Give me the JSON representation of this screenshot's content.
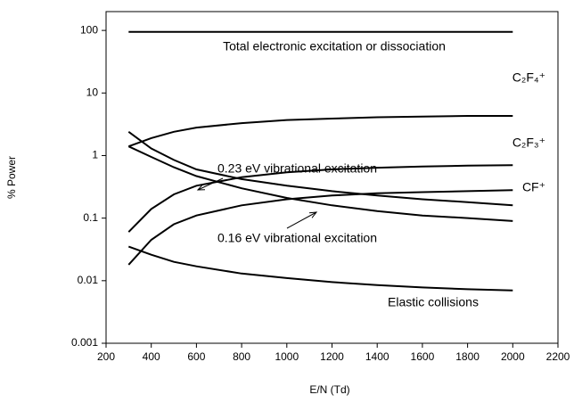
{
  "chart_data": {
    "type": "line",
    "x_label": "E/N (Td)",
    "y_label": "% Power",
    "log_y": true,
    "xlim": [
      200,
      2200
    ],
    "xticks": [
      200,
      400,
      600,
      800,
      1000,
      1200,
      1400,
      1600,
      1800,
      2000,
      2200
    ],
    "ylim": [
      0.001,
      200
    ],
    "yticks": [
      0.001,
      0.01,
      0.1,
      1,
      10,
      100
    ],
    "x": [
      300,
      400,
      500,
      600,
      800,
      1000,
      1200,
      1400,
      1600,
      1800,
      2000
    ],
    "series": [
      {
        "name": "Total electronic excitation or dissociation",
        "color": "#000000",
        "values": [
          95,
          95,
          95,
          95,
          95,
          95,
          95,
          95,
          95,
          95,
          95
        ]
      },
      {
        "name": "C₂F₄⁺",
        "color": "#000000",
        "values": [
          1.4,
          1.9,
          2.4,
          2.8,
          3.3,
          3.7,
          3.9,
          4.1,
          4.2,
          4.3,
          4.3
        ]
      },
      {
        "name": "C₂F₃⁺",
        "color": "#000000",
        "values": [
          0.06,
          0.14,
          0.24,
          0.33,
          0.45,
          0.54,
          0.6,
          0.64,
          0.67,
          0.69,
          0.7
        ]
      },
      {
        "name": "CF⁺",
        "color": "#000000",
        "values": [
          0.018,
          0.045,
          0.08,
          0.11,
          0.16,
          0.2,
          0.23,
          0.25,
          0.26,
          0.27,
          0.28
        ]
      },
      {
        "name": "0.23 eV vibrational excitation",
        "color": "#000000",
        "values": [
          2.4,
          1.3,
          0.85,
          0.6,
          0.42,
          0.33,
          0.27,
          0.23,
          0.2,
          0.18,
          0.16
        ]
      },
      {
        "name": "0.16 eV vibrational excitation",
        "color": "#000000",
        "values": [
          1.4,
          0.95,
          0.65,
          0.47,
          0.3,
          0.21,
          0.16,
          0.13,
          0.11,
          0.1,
          0.09
        ]
      },
      {
        "name": "Elastic collisions",
        "color": "#000000",
        "values": [
          0.035,
          0.026,
          0.02,
          0.017,
          0.013,
          0.011,
          0.0095,
          0.0085,
          0.0078,
          0.0073,
          0.007
        ]
      }
    ]
  }
}
